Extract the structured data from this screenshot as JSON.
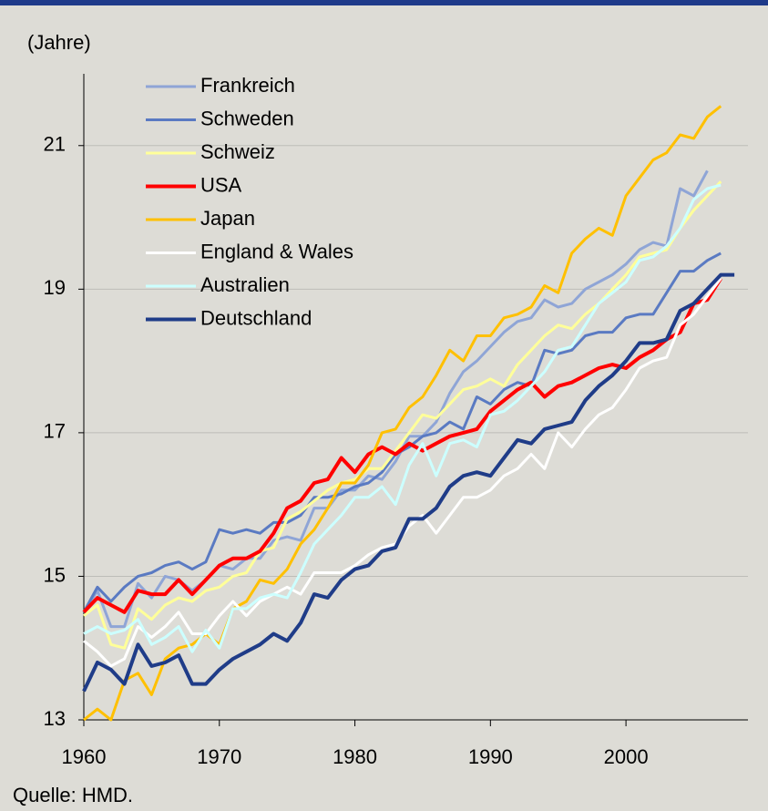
{
  "chart_data": {
    "type": "line",
    "y_label": "(Jahre)",
    "source": "Quelle: HMD.",
    "x": [
      1960,
      1961,
      1962,
      1963,
      1964,
      1965,
      1966,
      1967,
      1968,
      1969,
      1970,
      1971,
      1972,
      1973,
      1974,
      1975,
      1976,
      1977,
      1978,
      1979,
      1980,
      1981,
      1982,
      1983,
      1984,
      1985,
      1986,
      1987,
      1988,
      1989,
      1990,
      1991,
      1992,
      1993,
      1994,
      1995,
      1996,
      1997,
      1998,
      1999,
      2000,
      2001,
      2002,
      2003,
      2004,
      2005,
      2006,
      2007,
      2008
    ],
    "xlim": [
      1960,
      2009
    ],
    "xticks": [
      1960,
      1970,
      1980,
      1990,
      2000
    ],
    "ylim": [
      13,
      22
    ],
    "yticks": [
      13,
      15,
      17,
      19,
      21
    ],
    "grid": true,
    "series": [
      {
        "name": "Frankreich",
        "color": "#8fa5d6",
        "values": [
          14.5,
          14.8,
          14.3,
          14.3,
          14.9,
          14.7,
          15.0,
          14.95,
          14.8,
          14.95,
          15.15,
          15.1,
          15.25,
          15.25,
          15.5,
          15.55,
          15.5,
          15.95,
          15.95,
          16.2,
          16.2,
          16.4,
          16.35,
          16.6,
          16.95,
          16.95,
          17.15,
          17.55,
          17.85,
          18.0,
          18.2,
          18.4,
          18.55,
          18.6,
          18.85,
          18.75,
          18.8,
          19.0,
          19.1,
          19.2,
          19.35,
          19.55,
          19.65,
          19.6,
          20.4,
          20.3,
          20.65,
          null,
          null
        ]
      },
      {
        "name": "Schweden",
        "color": "#5a7ac2",
        "values": [
          14.5,
          14.85,
          14.65,
          14.85,
          15.0,
          15.05,
          15.15,
          15.2,
          15.1,
          15.2,
          15.65,
          15.6,
          15.65,
          15.6,
          15.75,
          15.75,
          15.85,
          16.1,
          16.1,
          16.15,
          16.25,
          16.3,
          16.45,
          16.7,
          16.8,
          16.95,
          17.0,
          17.15,
          17.05,
          17.5,
          17.4,
          17.6,
          17.7,
          17.65,
          18.15,
          18.1,
          18.15,
          18.35,
          18.4,
          18.4,
          18.6,
          18.65,
          18.65,
          18.95,
          19.25,
          19.25,
          19.4,
          19.5,
          null
        ]
      },
      {
        "name": "Schweiz",
        "color": "#ffff99",
        "values": [
          14.45,
          14.6,
          14.05,
          14.0,
          14.55,
          14.4,
          14.6,
          14.7,
          14.65,
          14.8,
          14.85,
          15.0,
          15.05,
          15.35,
          15.4,
          15.8,
          15.9,
          16.05,
          16.2,
          16.3,
          16.35,
          16.5,
          16.5,
          16.75,
          17.0,
          17.25,
          17.2,
          17.4,
          17.6,
          17.65,
          17.75,
          17.65,
          17.95,
          18.15,
          18.35,
          18.5,
          18.45,
          18.65,
          18.8,
          19.0,
          19.2,
          19.45,
          19.5,
          19.55,
          19.85,
          20.1,
          20.3,
          20.5,
          null
        ]
      },
      {
        "name": "USA",
        "color": "#ff0000",
        "values": [
          14.5,
          14.7,
          14.6,
          14.5,
          14.8,
          14.75,
          14.75,
          14.95,
          14.75,
          14.95,
          15.15,
          15.25,
          15.25,
          15.35,
          15.6,
          15.95,
          16.05,
          16.3,
          16.35,
          16.65,
          16.45,
          16.7,
          16.8,
          16.7,
          16.85,
          16.75,
          16.85,
          16.95,
          17.0,
          17.05,
          17.3,
          17.45,
          17.6,
          17.7,
          17.5,
          17.65,
          17.7,
          17.8,
          17.9,
          17.95,
          17.9,
          18.05,
          18.15,
          18.3,
          18.4,
          18.8,
          18.85,
          19.15,
          null
        ]
      },
      {
        "name": "Japan",
        "color": "#ffc000",
        "values": [
          13.0,
          13.15,
          13.0,
          13.55,
          13.65,
          13.35,
          13.85,
          14.0,
          14.05,
          14.2,
          14.05,
          14.55,
          14.65,
          14.95,
          14.9,
          15.1,
          15.45,
          15.65,
          15.95,
          16.3,
          16.3,
          16.55,
          17.0,
          17.05,
          17.35,
          17.5,
          17.8,
          18.15,
          18.0,
          18.35,
          18.35,
          18.6,
          18.65,
          18.75,
          19.05,
          18.95,
          19.5,
          19.7,
          19.85,
          19.75,
          20.3,
          20.55,
          20.8,
          20.9,
          21.15,
          21.1,
          21.4,
          21.55,
          null
        ]
      },
      {
        "name": "England & Wales",
        "color": "#ffffff",
        "values": [
          14.1,
          13.95,
          13.75,
          13.85,
          14.3,
          14.15,
          14.3,
          14.5,
          14.2,
          14.2,
          14.45,
          14.65,
          14.45,
          14.65,
          14.75,
          14.85,
          14.75,
          15.05,
          15.05,
          15.05,
          15.15,
          15.3,
          15.4,
          15.45,
          15.7,
          15.85,
          15.6,
          15.85,
          16.1,
          16.1,
          16.2,
          16.4,
          16.5,
          16.7,
          16.5,
          17.0,
          16.8,
          17.05,
          17.25,
          17.35,
          17.6,
          17.9,
          18.0,
          18.05,
          18.5,
          18.65,
          18.9,
          19.15,
          null
        ]
      },
      {
        "name": "Australien",
        "color": "#ccffff",
        "values": [
          14.2,
          14.3,
          14.2,
          14.25,
          14.4,
          14.05,
          14.15,
          14.3,
          13.95,
          14.25,
          14.0,
          14.55,
          14.55,
          14.7,
          14.75,
          14.7,
          15.05,
          15.45,
          15.65,
          15.85,
          16.1,
          16.1,
          16.25,
          16.0,
          16.55,
          16.85,
          16.4,
          16.85,
          16.9,
          16.8,
          17.25,
          17.3,
          17.45,
          17.65,
          17.85,
          18.15,
          18.2,
          18.5,
          18.8,
          18.95,
          19.1,
          19.4,
          19.45,
          19.6,
          19.85,
          20.25,
          20.4,
          20.45,
          null
        ]
      },
      {
        "name": "Deutschland",
        "color": "#1f3c88",
        "values": [
          13.4,
          13.8,
          13.7,
          13.5,
          14.05,
          13.75,
          13.8,
          13.9,
          13.5,
          13.5,
          13.7,
          13.85,
          13.95,
          14.05,
          14.2,
          14.1,
          14.35,
          14.75,
          14.7,
          14.95,
          15.1,
          15.15,
          15.35,
          15.4,
          15.8,
          15.8,
          15.95,
          16.25,
          16.4,
          16.45,
          16.4,
          16.65,
          16.9,
          16.85,
          17.05,
          17.1,
          17.15,
          17.45,
          17.65,
          17.8,
          18.0,
          18.25,
          18.25,
          18.3,
          18.7,
          18.8,
          19.0,
          19.2,
          19.2
        ]
      }
    ]
  }
}
